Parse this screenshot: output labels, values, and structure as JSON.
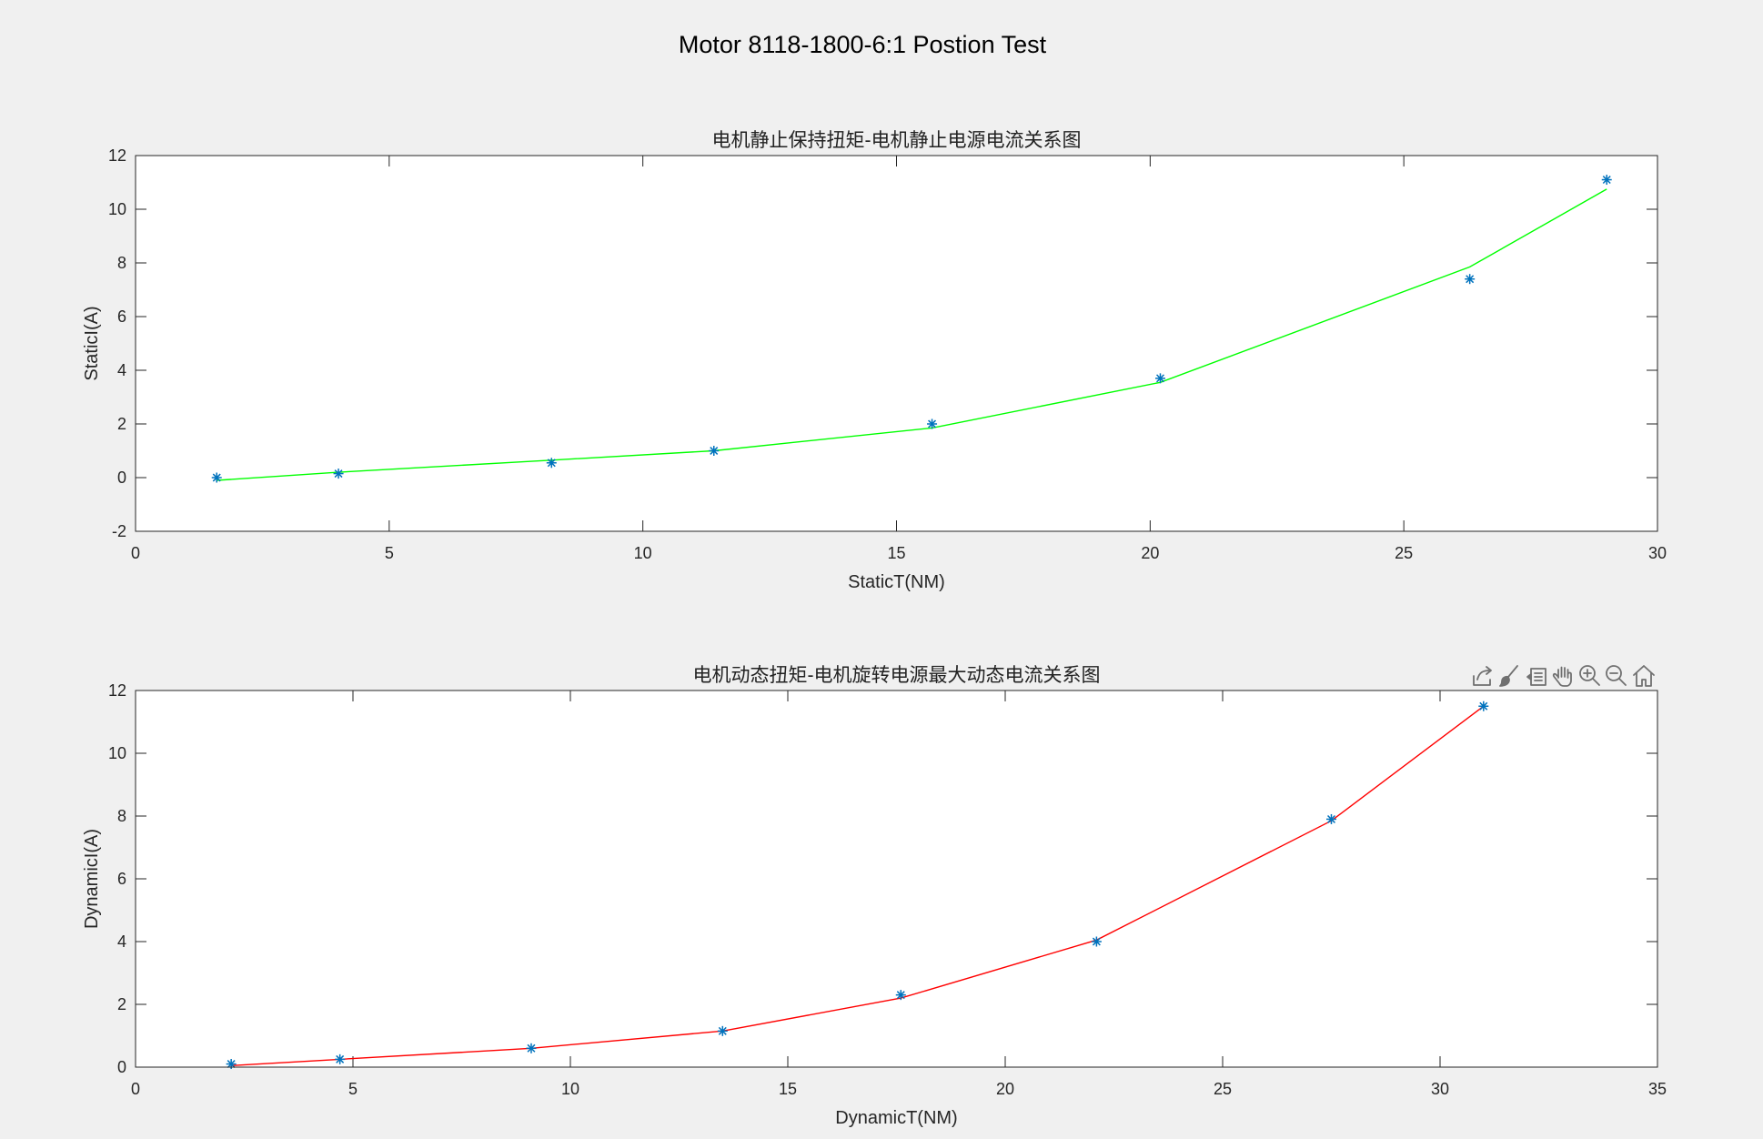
{
  "figure_title": "Motor 8118-1800-6:1 Postion Test",
  "toolbar": {
    "buttons": [
      "export-icon",
      "brush-icon",
      "data-tips-icon",
      "pan-icon",
      "zoom-in-icon",
      "zoom-out-icon",
      "home-icon"
    ]
  },
  "colors": {
    "background": "#f0f0f0",
    "axes_background": "#ffffff",
    "marker": "#0072bd",
    "static_fit_line": "#00ff00",
    "dynamic_fit_line": "#ff0000"
  },
  "chart_data": [
    {
      "type": "scatter",
      "title": "电机静止保持扭矩-电机静止电源电流关系图",
      "xlabel": "StaticT(NM)",
      "ylabel": "StaticI(A)",
      "xlim": [
        0,
        30
      ],
      "ylim": [
        -2,
        12
      ],
      "xticks": [
        0,
        5,
        10,
        15,
        20,
        25,
        30
      ],
      "yticks": [
        -2,
        0,
        2,
        4,
        6,
        8,
        10,
        12
      ],
      "grid": false,
      "series": [
        {
          "kind": "points",
          "marker": "*",
          "x": [
            1.6,
            4.0,
            8.2,
            11.4,
            15.7,
            20.2,
            26.3,
            29.0
          ],
          "y": [
            0.0,
            0.15,
            0.55,
            1.0,
            2.0,
            3.7,
            7.4,
            11.1
          ]
        },
        {
          "kind": "line",
          "x": [
            1.6,
            4.0,
            8.2,
            11.4,
            15.7,
            20.2,
            26.3,
            29.0
          ],
          "y": [
            -0.1,
            0.2,
            0.65,
            1.0,
            1.85,
            3.55,
            7.85,
            10.75
          ]
        }
      ]
    },
    {
      "type": "scatter",
      "title": "电机动态扭矩-电机旋转电源最大动态电流关系图",
      "xlabel": "DynamicT(NM)",
      "ylabel": "DynamicI(A)",
      "xlim": [
        0,
        35
      ],
      "ylim": [
        0,
        12
      ],
      "xticks": [
        0,
        5,
        10,
        15,
        20,
        25,
        30,
        35
      ],
      "yticks": [
        0,
        2,
        4,
        6,
        8,
        10,
        12
      ],
      "grid": false,
      "series": [
        {
          "kind": "points",
          "marker": "*",
          "x": [
            2.2,
            4.7,
            9.1,
            13.5,
            17.6,
            22.1,
            27.5,
            31.0
          ],
          "y": [
            0.1,
            0.25,
            0.6,
            1.15,
            2.3,
            4.0,
            7.9,
            11.5
          ]
        },
        {
          "kind": "line",
          "x": [
            2.2,
            4.7,
            9.1,
            13.5,
            17.6,
            22.1,
            27.5,
            31.0
          ],
          "y": [
            0.05,
            0.25,
            0.6,
            1.15,
            2.2,
            4.05,
            7.85,
            11.5
          ]
        }
      ]
    }
  ]
}
